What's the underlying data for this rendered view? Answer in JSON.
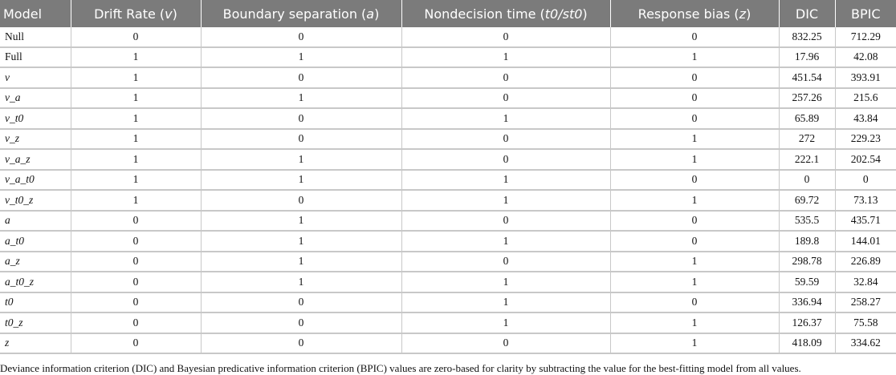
{
  "table": {
    "header": [
      [
        {
          "text": "Model"
        }
      ],
      [
        {
          "text": "Drift Rate ("
        },
        {
          "text": "v",
          "italic": true
        },
        {
          "text": ")"
        }
      ],
      [
        {
          "text": "Boundary separation ("
        },
        {
          "text": "a",
          "italic": true
        },
        {
          "text": ")"
        }
      ],
      [
        {
          "text": "Nondecision time ("
        },
        {
          "text": "t0/st0",
          "italic": true
        },
        {
          "text": ")"
        }
      ],
      [
        {
          "text": "Response bias ("
        },
        {
          "text": "z",
          "italic": true
        },
        {
          "text": ")"
        }
      ],
      [
        {
          "text": "DIC"
        }
      ],
      [
        {
          "text": "BPIC"
        }
      ]
    ],
    "rows": [
      {
        "model": "Null",
        "italic": false,
        "cells": [
          0,
          0,
          0,
          0,
          832.25,
          712.29
        ]
      },
      {
        "model": "Full",
        "italic": false,
        "cells": [
          1,
          1,
          1,
          1,
          17.96,
          42.08
        ]
      },
      {
        "model": "v",
        "italic": true,
        "cells": [
          1,
          0,
          0,
          0,
          451.54,
          393.91
        ]
      },
      {
        "model": "v_a",
        "italic": true,
        "cells": [
          1,
          1,
          0,
          0,
          257.26,
          215.6
        ]
      },
      {
        "model": "v_t0",
        "italic": true,
        "cells": [
          1,
          0,
          1,
          0,
          65.89,
          43.84
        ]
      },
      {
        "model": "v_z",
        "italic": true,
        "cells": [
          1,
          0,
          0,
          1,
          272,
          229.23
        ]
      },
      {
        "model": "v_a_z",
        "italic": true,
        "cells": [
          1,
          1,
          0,
          1,
          222.1,
          202.54
        ]
      },
      {
        "model": "v_a_t0",
        "italic": true,
        "cells": [
          1,
          1,
          1,
          0,
          0,
          0
        ]
      },
      {
        "model": "v_t0_z",
        "italic": true,
        "cells": [
          1,
          0,
          1,
          1,
          69.72,
          73.13
        ]
      },
      {
        "model": "a",
        "italic": true,
        "cells": [
          0,
          1,
          0,
          0,
          535.5,
          435.71
        ]
      },
      {
        "model": "a_t0",
        "italic": true,
        "cells": [
          0,
          1,
          1,
          0,
          189.8,
          144.01
        ]
      },
      {
        "model": "a_z",
        "italic": true,
        "cells": [
          0,
          1,
          0,
          1,
          298.78,
          226.89
        ]
      },
      {
        "model": "a_t0_z",
        "italic": true,
        "cells": [
          0,
          1,
          1,
          1,
          59.59,
          32.84
        ]
      },
      {
        "model": "t0",
        "italic": true,
        "cells": [
          0,
          0,
          1,
          0,
          336.94,
          258.27
        ]
      },
      {
        "model": "t0_z",
        "italic": true,
        "cells": [
          0,
          0,
          1,
          1,
          126.37,
          75.58
        ]
      },
      {
        "model": "z",
        "italic": true,
        "cells": [
          0,
          0,
          0,
          1,
          418.09,
          334.62
        ]
      }
    ],
    "footnote": "Deviance information criterion (DIC) and Bayesian predicative information criterion (BPIC) values are zero-based for clarity by subtracting the value for the best-fitting model from all values."
  }
}
